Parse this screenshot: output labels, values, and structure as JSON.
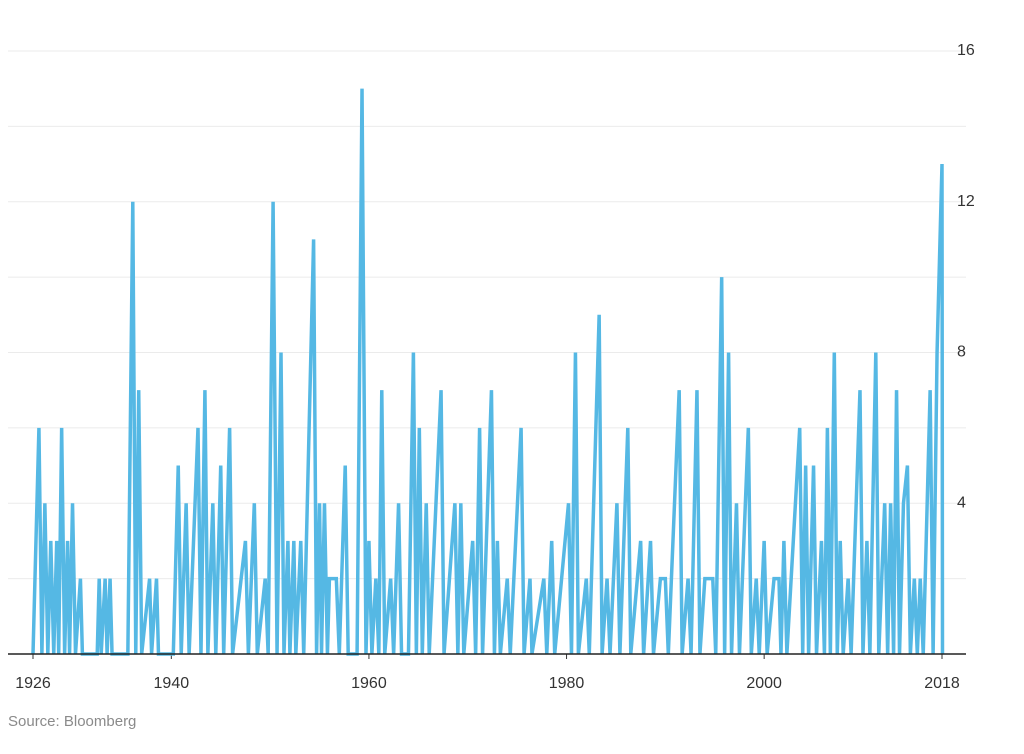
{
  "chart_data": {
    "type": "line",
    "source": "Source: Bloomberg",
    "xlim": [
      1926,
      2018
    ],
    "xticks": [
      1926,
      1940,
      1960,
      1980,
      2000,
      2018
    ],
    "ylim": [
      0,
      16
    ],
    "yticks": [
      4,
      8,
      12,
      16
    ],
    "minor_yticks": [
      2,
      6,
      10,
      14
    ],
    "grid": true,
    "series": [
      {
        "color": "#55b8e4",
        "x": [
          1926,
          1926.6,
          1926.9,
          1927.2,
          1927.5,
          1927.8,
          1928.1,
          1928.4,
          1928.6,
          1928.9,
          1929.2,
          1929.5,
          1929.7,
          1930,
          1930.3,
          1930.8,
          1931,
          1932.5,
          1932.7,
          1932.9,
          1933.3,
          1933.5,
          1933.8,
          1934,
          1935.6,
          1936.1,
          1936.4,
          1936.7,
          1937,
          1937.8,
          1938,
          1938.5,
          1938.7,
          1940.2,
          1940.7,
          1941,
          1941.5,
          1941.8,
          1942.7,
          1943,
          1943.4,
          1943.7,
          1944.2,
          1944.5,
          1945,
          1945.3,
          1945.9,
          1946.2,
          1947.5,
          1947.8,
          1948.4,
          1948.7,
          1949.5,
          1949.8,
          1950.3,
          1950.7,
          1951.1,
          1951.4,
          1951.8,
          1952,
          1952.4,
          1952.6,
          1953.1,
          1953.4,
          1954.4,
          1954.7,
          1955,
          1955.2,
          1955.5,
          1955.8,
          1956,
          1956.7,
          1957,
          1957.6,
          1957.9,
          1958.8,
          1959.3,
          1959.7,
          1960,
          1960.3,
          1960.7,
          1961,
          1961.3,
          1961.6,
          1962.2,
          1962.5,
          1963,
          1963.3,
          1964,
          1964.5,
          1964.8,
          1965.1,
          1965.4,
          1965.8,
          1966.1,
          1967.3,
          1967.6,
          1968.7,
          1969,
          1969.3,
          1969.6,
          1970.5,
          1970.8,
          1971.2,
          1971.5,
          1972.4,
          1972.7,
          1973,
          1973.3,
          1974,
          1974.3,
          1975.4,
          1975.7,
          1976.3,
          1976.5,
          1977.7,
          1978,
          1978.5,
          1978.8,
          1980.2,
          1980.5,
          1980.9,
          1981.2,
          1982,
          1982.3,
          1983.3,
          1983.6,
          1984.1,
          1984.4,
          1985.1,
          1985.4,
          1986.2,
          1986.5,
          1987.5,
          1987.8,
          1988.5,
          1988.8,
          1989.5,
          1990,
          1990.3,
          1991.4,
          1991.7,
          1992.3,
          1992.6,
          1993.2,
          1993.5,
          1994,
          1994.8,
          1995.1,
          1995.7,
          1996,
          1996.4,
          1996.7,
          1997.2,
          1997.5,
          1998.4,
          1998.7,
          1999.2,
          1999.5,
          2000,
          2000.3,
          2001,
          2001.5,
          2001.7,
          2002,
          2002.3,
          2003.6,
          2003.9,
          2004.2,
          2004.5,
          2005,
          2005.3,
          2005.8,
          2006.1,
          2006.4,
          2006.7,
          2007.1,
          2007.4,
          2007.7,
          2008,
          2008.5,
          2008.8,
          2009.7,
          2010,
          2010.4,
          2010.7,
          2011.3,
          2011.6,
          2012.2,
          2012.5,
          2012.8,
          2013.1,
          2013.4,
          2013.7,
          2014.1,
          2014.5,
          2014.8,
          2015.2,
          2015.5,
          2015.8,
          2016.1,
          2016.8,
          2017.1,
          2017.5,
          2018,
          2018.05
        ],
        "values": [
          0,
          6,
          0,
          4,
          0,
          3,
          0,
          3,
          0,
          6,
          0,
          3,
          0,
          4,
          0,
          2,
          0,
          0,
          2,
          0,
          2,
          0,
          2,
          0,
          0,
          12,
          0,
          7,
          0,
          2,
          0,
          2,
          0,
          0,
          5,
          0,
          4,
          0,
          6,
          0,
          7,
          0,
          4,
          0,
          5,
          0,
          6,
          0,
          3,
          0,
          4,
          0,
          2,
          0,
          12,
          0,
          8,
          0,
          3,
          0,
          3,
          0,
          3,
          0,
          11,
          0,
          4,
          0,
          4,
          0,
          2,
          2,
          0,
          5,
          0,
          0,
          15,
          0,
          3,
          0,
          2,
          0,
          7,
          0,
          2,
          0,
          4,
          0,
          0,
          8,
          0,
          6,
          0,
          4,
          0,
          7,
          0,
          4,
          0,
          4,
          0,
          3,
          0,
          6,
          0,
          7,
          0,
          3,
          0,
          2,
          0,
          6,
          0,
          2,
          0,
          2,
          0,
          3,
          0,
          4,
          0,
          8,
          0,
          2,
          0,
          9,
          0,
          2,
          0,
          4,
          0,
          6,
          0,
          3,
          0,
          3,
          0,
          2,
          2,
          0,
          7,
          0,
          2,
          0,
          7,
          0,
          2,
          2,
          0,
          10,
          0,
          8,
          0,
          4,
          0,
          6,
          0,
          2,
          0,
          3,
          0,
          2,
          2,
          0,
          3,
          0,
          6,
          0,
          5,
          0,
          5,
          0,
          3,
          0,
          6,
          0,
          8,
          0,
          3,
          0,
          2,
          0,
          7,
          0,
          3,
          0,
          8,
          0,
          4,
          0,
          4,
          0,
          7,
          0,
          4,
          5,
          0,
          2,
          0,
          2,
          0,
          7,
          0,
          8,
          13,
          0
        ]
      }
    ]
  }
}
